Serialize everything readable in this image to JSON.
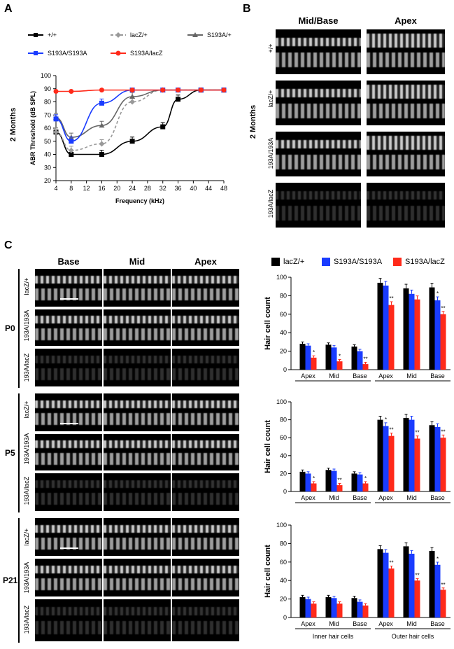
{
  "panelA": {
    "letter": "A",
    "row_label": "2 Months",
    "legend": [
      "+/+",
      "lacZ/+",
      "S193A/+",
      "S193A/S193A",
      "S193A/lacZ"
    ],
    "colors": {
      "wt": "#000000",
      "lacz": "#999999",
      "s193a_het": "#666666",
      "s193a_hom": "#1a3cff",
      "s193a_lacz": "#ff2a1a"
    }
  },
  "panelB": {
    "letter": "B",
    "col_headers": [
      "Mid/Base",
      "Apex"
    ],
    "row_group": "2 Months",
    "row_labels": [
      "+/+",
      "lacZ/+",
      "193A/193A",
      "193A/lacZ"
    ]
  },
  "panelC": {
    "letter": "C",
    "col_headers": [
      "Base",
      "Mid",
      "Apex"
    ],
    "ages": [
      "P0",
      "P5",
      "P21"
    ],
    "row_labels": [
      "lacZ/+",
      "193A/193A",
      "193A/lacZ"
    ],
    "legend": [
      "lacZ/+",
      "S193A/S193A",
      "S193A/lacZ"
    ],
    "ylabel": "Hair cell count",
    "x_groups": [
      "Inner hair cells",
      "Outer hair cells"
    ]
  },
  "chart_data": [
    {
      "type": "line",
      "xlabel": "Frequency (kHz)",
      "ylabel": "ABR Threshold (dB SPL)",
      "xlim": [
        4,
        48
      ],
      "ylim": [
        20,
        100
      ],
      "xticks": [
        4,
        8,
        12,
        16,
        20,
        24,
        28,
        32,
        36,
        40,
        44,
        48
      ],
      "yticks": [
        20,
        30,
        40,
        50,
        60,
        70,
        80,
        90,
        100
      ],
      "series": [
        {
          "name": "+/+",
          "color": "#000000",
          "dash": "",
          "marker": "square",
          "x": [
            4,
            8,
            16,
            24,
            32,
            36,
            42,
            48
          ],
          "y": [
            57,
            40,
            40,
            50,
            61,
            82,
            89,
            89
          ]
        },
        {
          "name": "lacZ/+",
          "color": "#999999",
          "dash": "4,3",
          "marker": "diamond",
          "x": [
            4,
            8,
            16,
            24,
            32,
            36,
            42,
            48
          ],
          "y": [
            57,
            43,
            48,
            80,
            89,
            89,
            89,
            89
          ]
        },
        {
          "name": "S193A/+",
          "color": "#666666",
          "dash": "",
          "marker": "triangle",
          "x": [
            4,
            8,
            16,
            24,
            32,
            36,
            42,
            48
          ],
          "y": [
            68,
            53,
            62,
            84,
            89,
            89,
            89,
            89
          ]
        },
        {
          "name": "S193A/S193A",
          "color": "#1a3cff",
          "dash": "",
          "marker": "square",
          "x": [
            4,
            8,
            16,
            24,
            32,
            36,
            42,
            48
          ],
          "y": [
            67,
            50,
            79,
            89,
            89,
            89,
            89,
            89
          ]
        },
        {
          "name": "S193A/lacZ",
          "color": "#ff2a1a",
          "dash": "",
          "marker": "circle",
          "x": [
            4,
            8,
            16,
            24,
            32,
            36,
            42,
            48
          ],
          "y": [
            88,
            88,
            89,
            89,
            89,
            89,
            89,
            89
          ]
        }
      ]
    },
    {
      "type": "bar",
      "title": "P0",
      "ylim": [
        0,
        100
      ],
      "yticks": [
        0,
        20,
        40,
        60,
        80,
        100
      ],
      "categories": [
        "Apex",
        "Mid",
        "Base",
        "Apex",
        "Mid",
        "Base"
      ],
      "series": [
        {
          "name": "lacZ/+",
          "color": "#000000",
          "values": [
            28,
            27,
            25,
            94,
            88,
            89
          ]
        },
        {
          "name": "S193A/S193A",
          "color": "#1a3cff",
          "values": [
            26,
            24,
            20,
            91,
            82,
            75
          ]
        },
        {
          "name": "S193A/lacZ",
          "color": "#ff2a1a",
          "values": [
            13,
            9,
            6,
            70,
            76,
            60
          ]
        }
      ],
      "significance": [
        [
          "",
          "",
          "*"
        ],
        [
          "",
          "",
          "*"
        ],
        [
          "",
          "",
          "**"
        ],
        [
          "",
          "",
          "**"
        ],
        [
          "",
          "",
          ""
        ],
        [
          "",
          "*",
          "**"
        ]
      ]
    },
    {
      "type": "bar",
      "title": "P5",
      "ylim": [
        0,
        100
      ],
      "yticks": [
        0,
        20,
        40,
        60,
        80,
        100
      ],
      "categories": [
        "Apex",
        "Mid",
        "Base",
        "Apex",
        "Mid",
        "Base"
      ],
      "series": [
        {
          "name": "lacZ/+",
          "color": "#000000",
          "values": [
            22,
            24,
            20,
            80,
            82,
            74
          ]
        },
        {
          "name": "S193A/S193A",
          "color": "#1a3cff",
          "values": [
            20,
            23,
            19,
            73,
            80,
            72
          ]
        },
        {
          "name": "S193A/lacZ",
          "color": "#ff2a1a",
          "values": [
            9,
            7,
            9,
            62,
            59,
            60
          ]
        }
      ],
      "significance": [
        [
          "",
          "",
          "*"
        ],
        [
          "",
          "",
          "**"
        ],
        [
          "",
          "",
          "*"
        ],
        [
          "",
          "*",
          "**"
        ],
        [
          "",
          "",
          "**"
        ],
        [
          "",
          "",
          "**"
        ]
      ]
    },
    {
      "type": "bar",
      "title": "P21",
      "ylim": [
        0,
        100
      ],
      "yticks": [
        0,
        20,
        40,
        60,
        80,
        100
      ],
      "categories": [
        "Apex",
        "Mid",
        "Base",
        "Apex",
        "Mid",
        "Base"
      ],
      "series": [
        {
          "name": "lacZ/+",
          "color": "#000000",
          "values": [
            22,
            22,
            21,
            74,
            77,
            72
          ]
        },
        {
          "name": "S193A/S193A",
          "color": "#1a3cff",
          "values": [
            20,
            21,
            17,
            70,
            69,
            57
          ]
        },
        {
          "name": "S193A/lacZ",
          "color": "#ff2a1a",
          "values": [
            15,
            15,
            13,
            53,
            40,
            30
          ]
        }
      ],
      "significance": [
        [
          "",
          "",
          ""
        ],
        [
          "",
          "",
          ""
        ],
        [
          "",
          "",
          ""
        ],
        [
          "",
          "",
          "**"
        ],
        [
          "",
          "",
          "**"
        ],
        [
          "",
          "*",
          "**"
        ]
      ]
    }
  ]
}
